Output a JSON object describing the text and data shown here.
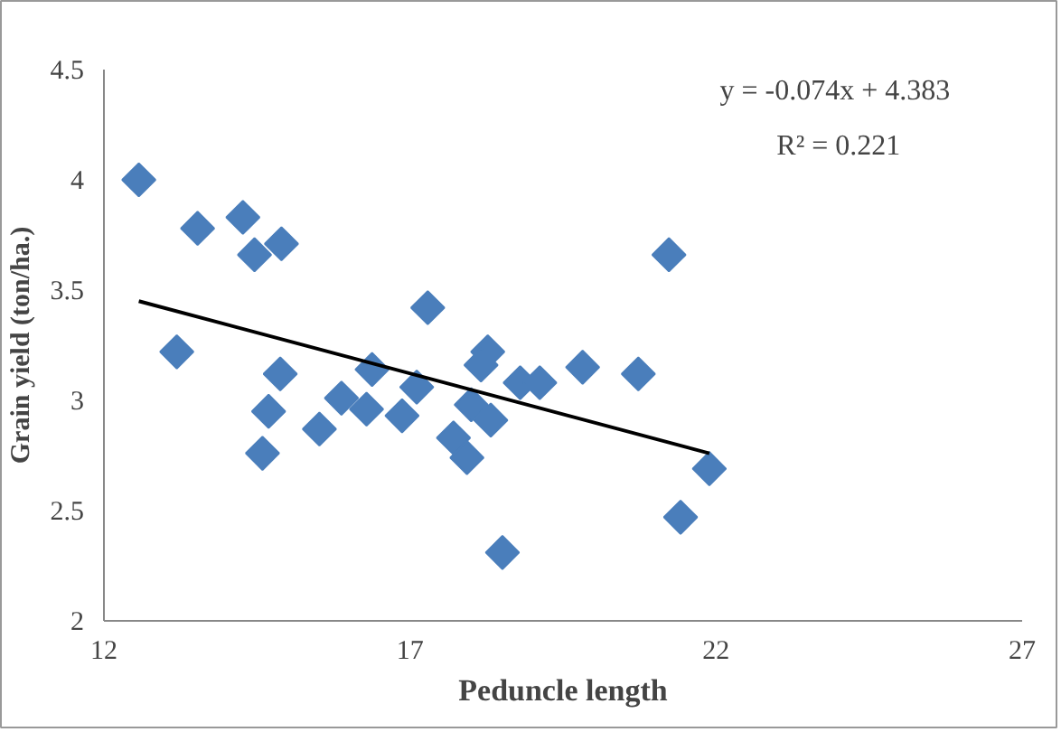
{
  "chart_data": {
    "type": "scatter",
    "xlabel": "Peduncle length",
    "ylabel": "Grain yield (ton/ha.)",
    "xlim": [
      12,
      27
    ],
    "xticks": [
      12,
      17,
      22,
      27
    ],
    "ylim": [
      2,
      4.5
    ],
    "yticks": [
      2,
      2.5,
      3,
      3.5,
      4,
      4.5
    ],
    "grid": false,
    "marker": "diamond",
    "annotations": [
      "y = -0.074x  + 4.383",
      "R² = 0.221"
    ],
    "series": [
      {
        "color": "#4a7ebb",
        "x": [
          12.57,
          13.53,
          14.27,
          14.46,
          14.9,
          13.19,
          14.88,
          14.69,
          14.59,
          15.52,
          15.88,
          16.29,
          16.38,
          16.87,
          17.11,
          17.29,
          17.71,
          17.93,
          18.0,
          18.27,
          18.16,
          18.32,
          18.51,
          18.8,
          19.12,
          19.82,
          20.73,
          21.23,
          21.42,
          21.89
        ],
        "values": [
          4.0,
          3.78,
          3.83,
          3.66,
          3.71,
          3.22,
          3.12,
          2.95,
          2.76,
          2.87,
          3.01,
          2.96,
          3.14,
          2.93,
          3.06,
          3.42,
          2.83,
          2.74,
          2.98,
          3.22,
          3.16,
          2.91,
          2.31,
          3.08,
          3.08,
          3.15,
          3.12,
          3.66,
          2.47,
          2.69
        ]
      },
      {
        "type": "line",
        "marker": "none",
        "color": "#000000",
        "x": [
          12.57,
          21.89
        ],
        "values": [
          3.45,
          2.76
        ]
      }
    ]
  }
}
